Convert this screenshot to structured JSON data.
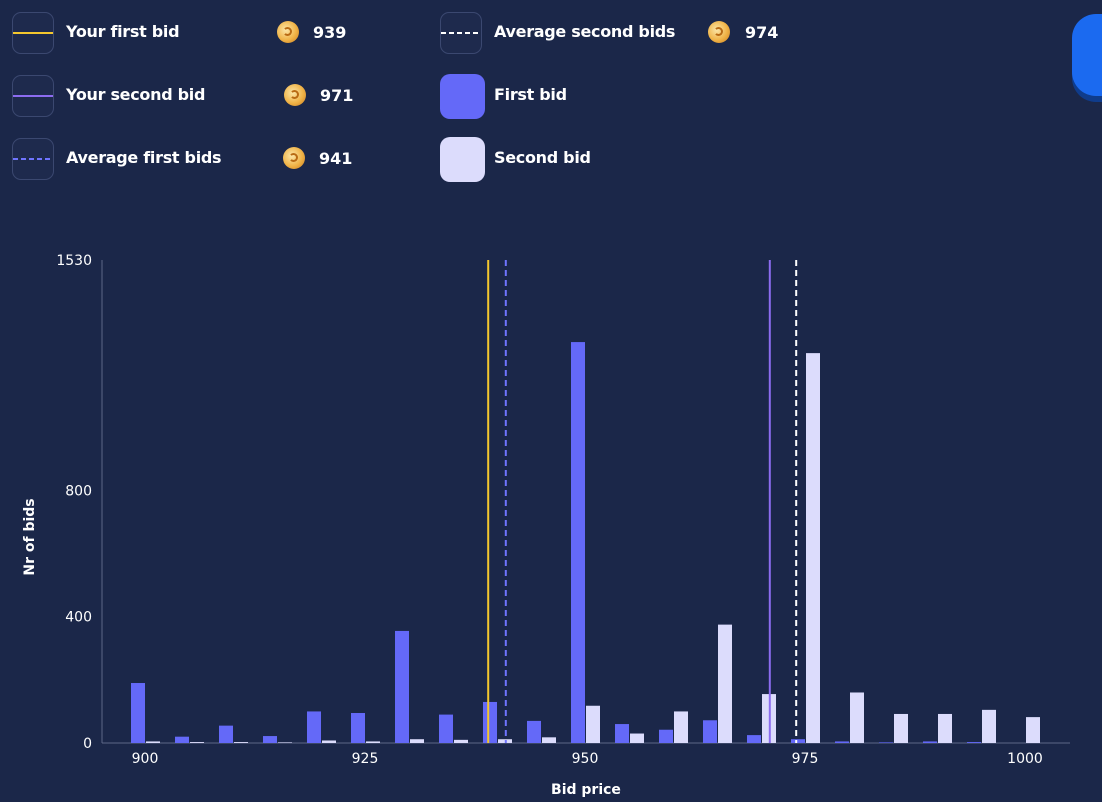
{
  "legend": {
    "items": [
      {
        "label": "Your first bid",
        "value": "939",
        "kind": "solid-line",
        "color": "#f4c72e"
      },
      {
        "label": "Your second bid",
        "value": "971",
        "kind": "solid-line",
        "color": "#8c6cf0"
      },
      {
        "label": "Average first bids",
        "value": "941",
        "kind": "dashed-line",
        "color": "#6f74ff"
      },
      {
        "label": "Average second bids",
        "value": "974",
        "kind": "dashed-line",
        "color": "#ffffff"
      },
      {
        "label": "First bid",
        "kind": "swatch",
        "color": "#6469f8"
      },
      {
        "label": "Second bid",
        "kind": "swatch",
        "color": "#dcdcfc"
      }
    ],
    "shell_icon": "shell-icon"
  },
  "chart_data": {
    "type": "bar",
    "xlabel": "Bid price",
    "ylabel": "Nr of bids",
    "ylim": [
      0,
      1530
    ],
    "yticks": [
      "0",
      "400",
      "800",
      "1530"
    ],
    "xlim": [
      900,
      1000
    ],
    "xticks": [
      "900",
      "925",
      "950",
      "975",
      "1000"
    ],
    "grid": false,
    "categories": [
      900,
      905,
      910,
      915,
      920,
      925,
      930,
      935,
      940,
      945,
      950,
      955,
      960,
      965,
      970,
      975,
      980,
      985,
      990,
      995,
      1000
    ],
    "series": [
      {
        "name": "First bid",
        "color": "#6469f8",
        "values": [
          190,
          20,
          55,
          22,
          100,
          95,
          355,
          90,
          130,
          70,
          1270,
          60,
          42,
          72,
          25,
          12,
          5,
          2,
          5,
          3,
          0
        ]
      },
      {
        "name": "Second bid",
        "color": "#dcdcfc",
        "values": [
          5,
          3,
          3,
          2,
          8,
          5,
          12,
          10,
          12,
          18,
          118,
          30,
          100,
          375,
          155,
          1235,
          160,
          92,
          92,
          105,
          82
        ]
      }
    ],
    "reference_lines": [
      {
        "name": "Your first bid",
        "x": 939,
        "color": "#f4c72e",
        "dashed": false
      },
      {
        "name": "Average first bids",
        "x": 941,
        "color": "#6f74ff",
        "dashed": true
      },
      {
        "name": "Your second bid",
        "x": 971,
        "color": "#8c6cf0",
        "dashed": false
      },
      {
        "name": "Average second bids",
        "x": 974,
        "color": "#ffffff",
        "dashed": true
      }
    ]
  }
}
